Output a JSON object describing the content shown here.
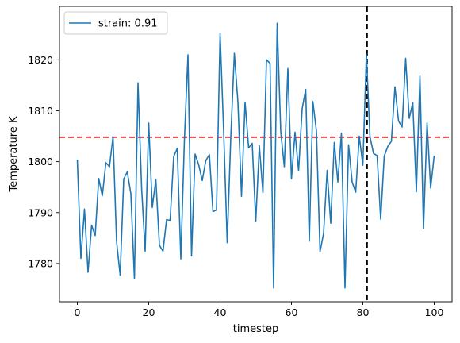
{
  "chart_data": {
    "type": "line",
    "xlabel": "timestep",
    "ylabel": "Temperature K",
    "xlim": [
      -5,
      105
    ],
    "ylim": [
      1772.5,
      1830.5
    ],
    "xticks": [
      0,
      20,
      40,
      60,
      80,
      100
    ],
    "yticks": [
      1780,
      1790,
      1800,
      1810,
      1820
    ],
    "grid": false,
    "legend_position": "upper-left",
    "series": [
      {
        "name": "strain: 0.91",
        "color": "#1f77b4",
        "x": [
          0,
          1,
          2,
          3,
          4,
          5,
          6,
          7,
          8,
          9,
          10,
          11,
          12,
          13,
          14,
          15,
          16,
          17,
          18,
          19,
          20,
          21,
          22,
          23,
          24,
          25,
          26,
          27,
          28,
          29,
          30,
          31,
          32,
          33,
          34,
          35,
          36,
          37,
          38,
          39,
          40,
          41,
          42,
          43,
          44,
          45,
          46,
          47,
          48,
          49,
          50,
          51,
          52,
          53,
          54,
          55,
          56,
          57,
          58,
          59,
          60,
          61,
          62,
          63,
          64,
          65,
          66,
          67,
          68,
          69,
          70,
          71,
          72,
          73,
          74,
          75,
          76,
          77,
          78,
          79,
          80,
          81,
          82,
          83,
          84,
          85,
          86,
          87,
          88,
          89,
          90,
          91,
          92,
          93,
          94,
          95,
          96,
          97,
          98,
          99,
          100
        ],
        "y": [
          1800.4,
          1781.0,
          1790.7,
          1778.3,
          1787.5,
          1785.5,
          1796.7,
          1793.3,
          1799.8,
          1799.0,
          1804.9,
          1784.3,
          1777.7,
          1796.6,
          1798.0,
          1793.7,
          1777.0,
          1815.5,
          1795.0,
          1782.4,
          1807.6,
          1791.0,
          1796.5,
          1783.6,
          1782.4,
          1788.6,
          1788.5,
          1801.0,
          1802.6,
          1780.9,
          1804.2,
          1821.0,
          1781.5,
          1801.5,
          1799.4,
          1796.3,
          1800.2,
          1801.4,
          1790.2,
          1790.5,
          1825.2,
          1806.0,
          1784.1,
          1804.8,
          1821.3,
          1811.7,
          1793.2,
          1811.7,
          1802.7,
          1803.6,
          1788.3,
          1803.1,
          1793.9,
          1820.0,
          1819.3,
          1775.2,
          1827.2,
          1805.9,
          1799.0,
          1818.3,
          1796.6,
          1805.8,
          1798.2,
          1810.4,
          1814.2,
          1784.4,
          1811.8,
          1806.0,
          1782.3,
          1785.9,
          1798.3,
          1787.9,
          1803.8,
          1796.0,
          1805.6,
          1775.2,
          1803.3,
          1796.0,
          1794.0,
          1805.0,
          1799.3,
          1821.0,
          1804.9,
          1801.6,
          1801.2,
          1788.7,
          1801.1,
          1803.0,
          1804.0,
          1814.7,
          1808.0,
          1806.8,
          1820.3,
          1808.5,
          1811.6,
          1794.1,
          1816.8,
          1786.8,
          1807.6,
          1794.8,
          1801.2
        ]
      }
    ],
    "reference_lines": [
      {
        "orientation": "horizontal",
        "value": 1804.8,
        "color": "#d62728",
        "style": "dashed"
      },
      {
        "orientation": "vertical",
        "value": 81.2,
        "color": "#000000",
        "style": "dashed"
      }
    ]
  }
}
